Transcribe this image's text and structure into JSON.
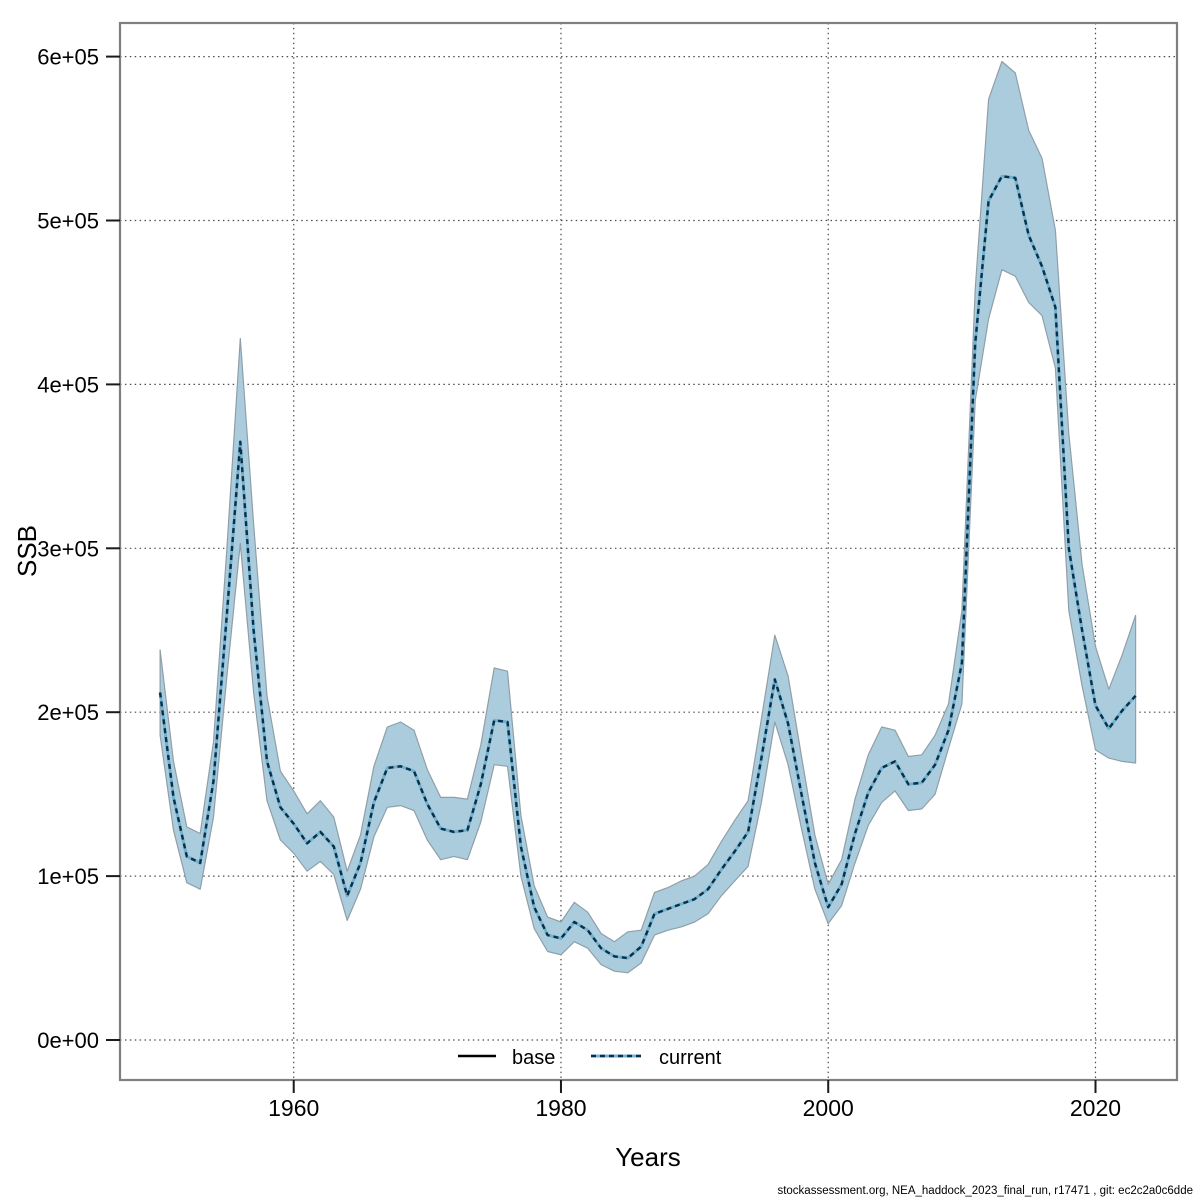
{
  "figure": {
    "xlabel": "Years",
    "ylabel": "SSB",
    "footer": "stockassessment.org, NEA_haddock_2023_final_run, r17471 , git: ec2c2a0c6dde"
  },
  "legend": {
    "base_label": "base",
    "current_label": "current"
  },
  "chart_data": {
    "type": "line",
    "title": "",
    "xlabel": "Years",
    "ylabel": "SSB",
    "grid": "dotted",
    "legend": {
      "position": "bottom-center",
      "entries": [
        {
          "label": "base",
          "line": "solid",
          "color": "#000000"
        },
        {
          "label": "current",
          "line": "dashed",
          "color": "#0d2f45"
        }
      ]
    },
    "axes": {
      "xlim": [
        1947.0,
        2026.1
      ],
      "ylim": [
        -24400,
        620500
      ]
    },
    "x_ticks": {
      "values": [
        1960,
        1980,
        2000,
        2020
      ],
      "labels": [
        "1960",
        "1980",
        "2000",
        "2020"
      ]
    },
    "y_ticks": {
      "values": [
        0,
        100000,
        200000,
        300000,
        400000,
        500000,
        600000
      ],
      "labels": [
        "0e+00",
        "1e+05",
        "2e+05",
        "3e+05",
        "4e+05",
        "5e+05",
        "6e+05"
      ]
    },
    "series": {
      "name": "current",
      "years": [
        1950,
        1951,
        1952,
        1953,
        1954,
        1955,
        1956,
        1957,
        1958,
        1959,
        1960,
        1961,
        1962,
        1963,
        1964,
        1965,
        1966,
        1967,
        1968,
        1969,
        1970,
        1971,
        1972,
        1973,
        1974,
        1975,
        1976,
        1977,
        1978,
        1979,
        1980,
        1981,
        1982,
        1983,
        1984,
        1985,
        1986,
        1987,
        1988,
        1989,
        1990,
        1991,
        1992,
        1993,
        1994,
        1995,
        1996,
        1997,
        1998,
        1999,
        2000,
        2001,
        2002,
        2003,
        2004,
        2005,
        2006,
        2007,
        2008,
        2009,
        2010,
        2011,
        2012,
        2013,
        2014,
        2015,
        2016,
        2017,
        2018,
        2019,
        2020,
        2021,
        2022,
        2023
      ],
      "ssb": [
        212000,
        148000,
        112000,
        108000,
        158000,
        260000,
        365000,
        250000,
        170000,
        142000,
        132000,
        120000,
        127000,
        118000,
        88000,
        108000,
        145000,
        166000,
        167000,
        164000,
        144000,
        129000,
        127000,
        128000,
        156000,
        195000,
        194000,
        118000,
        81000,
        64000,
        62000,
        72000,
        67000,
        56000,
        51000,
        50000,
        57000,
        77000,
        80000,
        83000,
        86000,
        92000,
        104000,
        115000,
        127000,
        172000,
        220000,
        193000,
        150000,
        108000,
        81000,
        95000,
        126000,
        151000,
        166000,
        170000,
        156000,
        157000,
        168000,
        189000,
        230000,
        425000,
        512000,
        527000,
        526000,
        491000,
        472000,
        447000,
        300000,
        250000,
        204000,
        190000,
        201000,
        210000
      ],
      "lower": [
        186000,
        128000,
        96000,
        92000,
        136000,
        222000,
        303000,
        212000,
        146000,
        122000,
        114000,
        103000,
        109000,
        101000,
        73000,
        92000,
        124000,
        142000,
        143000,
        140000,
        122000,
        110000,
        112000,
        110000,
        133000,
        168000,
        167000,
        100000,
        68000,
        54000,
        52000,
        60000,
        56000,
        46000,
        42000,
        41000,
        47000,
        64000,
        67000,
        69000,
        72000,
        77000,
        88000,
        97000,
        106000,
        145000,
        194000,
        168000,
        129000,
        92000,
        71000,
        82000,
        108000,
        131000,
        145000,
        152000,
        140000,
        141000,
        150000,
        178000,
        205000,
        390000,
        440000,
        470000,
        466000,
        450000,
        442000,
        410000,
        262000,
        216000,
        177000,
        172000,
        170000,
        169000
      ],
      "upper": [
        238000,
        170000,
        130000,
        126000,
        182000,
        300000,
        428000,
        315000,
        210000,
        164000,
        152000,
        138000,
        146000,
        136000,
        103000,
        125000,
        167000,
        191000,
        194000,
        189000,
        165000,
        148000,
        148000,
        147000,
        180000,
        227000,
        225000,
        137000,
        94000,
        75000,
        72000,
        84000,
        78000,
        65000,
        60000,
        66000,
        67000,
        90000,
        93000,
        97000,
        100000,
        107000,
        121000,
        134000,
        146000,
        196000,
        247000,
        222000,
        173000,
        125000,
        95000,
        110000,
        147000,
        174000,
        191000,
        189000,
        173000,
        174000,
        186000,
        205000,
        262000,
        458000,
        574000,
        597000,
        590000,
        555000,
        538000,
        494000,
        370000,
        290000,
        240000,
        214000,
        235000,
        259000
      ]
    },
    "colors": {
      "band_fill": "#abccdd",
      "band_edge": "#8f9fa8",
      "line_underlay": "#6fb3d4",
      "line_dash": "#0d2f45",
      "grid": "#4c4c4c",
      "frame": "#7f7f7f",
      "tick": "#1a1a1a",
      "text": "#000000"
    }
  }
}
